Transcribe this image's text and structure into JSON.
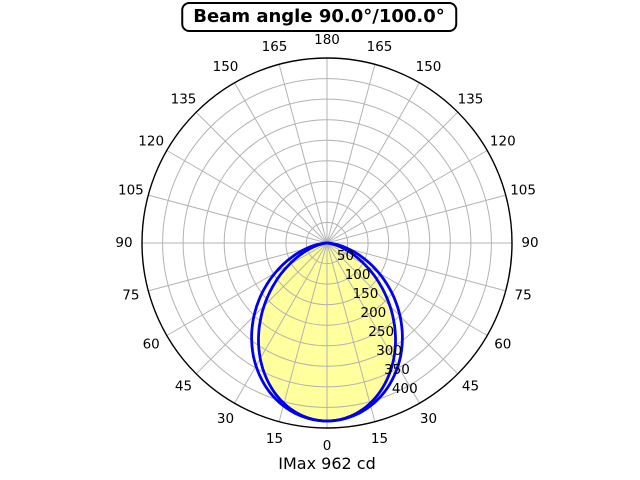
{
  "title": {
    "text": "Beam angle 90.0°/100.0°"
  },
  "footer": {
    "imax_label": "IMax 962 cd"
  },
  "chart_data": {
    "type": "polar",
    "subtype": "luminous-intensity-distribution",
    "title": "Beam angle 90.0°/100.0°",
    "beam_angles_deg": [
      90.0,
      100.0
    ],
    "imax_cd": 962,
    "zero_direction": "down",
    "angle_tick_step_deg": 15,
    "angle_tick_labels": [
      "0",
      "15",
      "30",
      "45",
      "60",
      "75",
      "90",
      "105",
      "120",
      "135",
      "150",
      "165",
      "180"
    ],
    "angle_labels_mirrored": true,
    "r_tick_labels": [
      50,
      100,
      150,
      200,
      250,
      300,
      350,
      400
    ],
    "r_max": 450,
    "grid": true,
    "legend": false,
    "sample_angles_deg": [
      0,
      15,
      30,
      45,
      60,
      75,
      90
    ],
    "series": [
      {
        "name": "beam-90",
        "beam_angle_deg": 90.0,
        "peak": 433,
        "cosine_exponent": 2.0,
        "filled": true,
        "values": [
          433,
          404,
          325,
          217,
          108,
          29,
          0
        ]
      },
      {
        "name": "beam-100",
        "beam_angle_deg": 100.0,
        "peak": 433,
        "cosine_exponent": 1.57,
        "filled": false,
        "values": [
          433,
          410,
          346,
          251,
          146,
          52,
          0
        ]
      }
    ],
    "colors": {
      "curve": "#0000ee",
      "fill": "#ffff9d",
      "grid": "#b3b3b3",
      "outer_circle": "#000000",
      "text": "#000000",
      "background": "#ffffff"
    }
  }
}
